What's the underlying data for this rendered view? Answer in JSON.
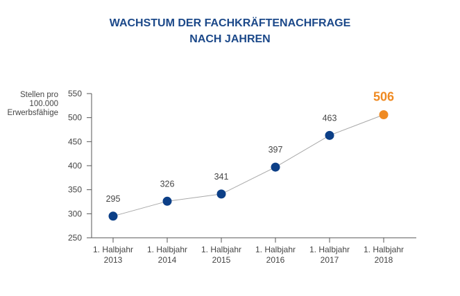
{
  "chart_data": {
    "type": "line",
    "title_lines": [
      "WACHSTUM DER FACHKRÄFTENACHFRAGE",
      "NACH JAHREN"
    ],
    "ylabel_lines": [
      "Stellen pro",
      "100.000",
      "Erwerbsfähige"
    ],
    "categories": [
      [
        "1. Halbjahr",
        "2013"
      ],
      [
        "1. Halbjahr",
        "2014"
      ],
      [
        "1. Halbjahr",
        "2015"
      ],
      [
        "1. Halbjahr",
        "2016"
      ],
      [
        "1. Halbjahr",
        "2017"
      ],
      [
        "1. Halbjahr",
        "2018"
      ]
    ],
    "values": [
      295,
      326,
      341,
      397,
      463,
      506
    ],
    "labels": [
      "295",
      "326",
      "341",
      "397",
      "463",
      "506"
    ],
    "ylim": [
      250,
      550
    ],
    "yticks": [
      250,
      300,
      350,
      400,
      450,
      500,
      550
    ],
    "grid": false,
    "colors": {
      "point": "#0c3f87",
      "highlight": "#ef8a22",
      "line": "#a8a8a8",
      "axis": "#555555",
      "text": "#444444"
    }
  }
}
